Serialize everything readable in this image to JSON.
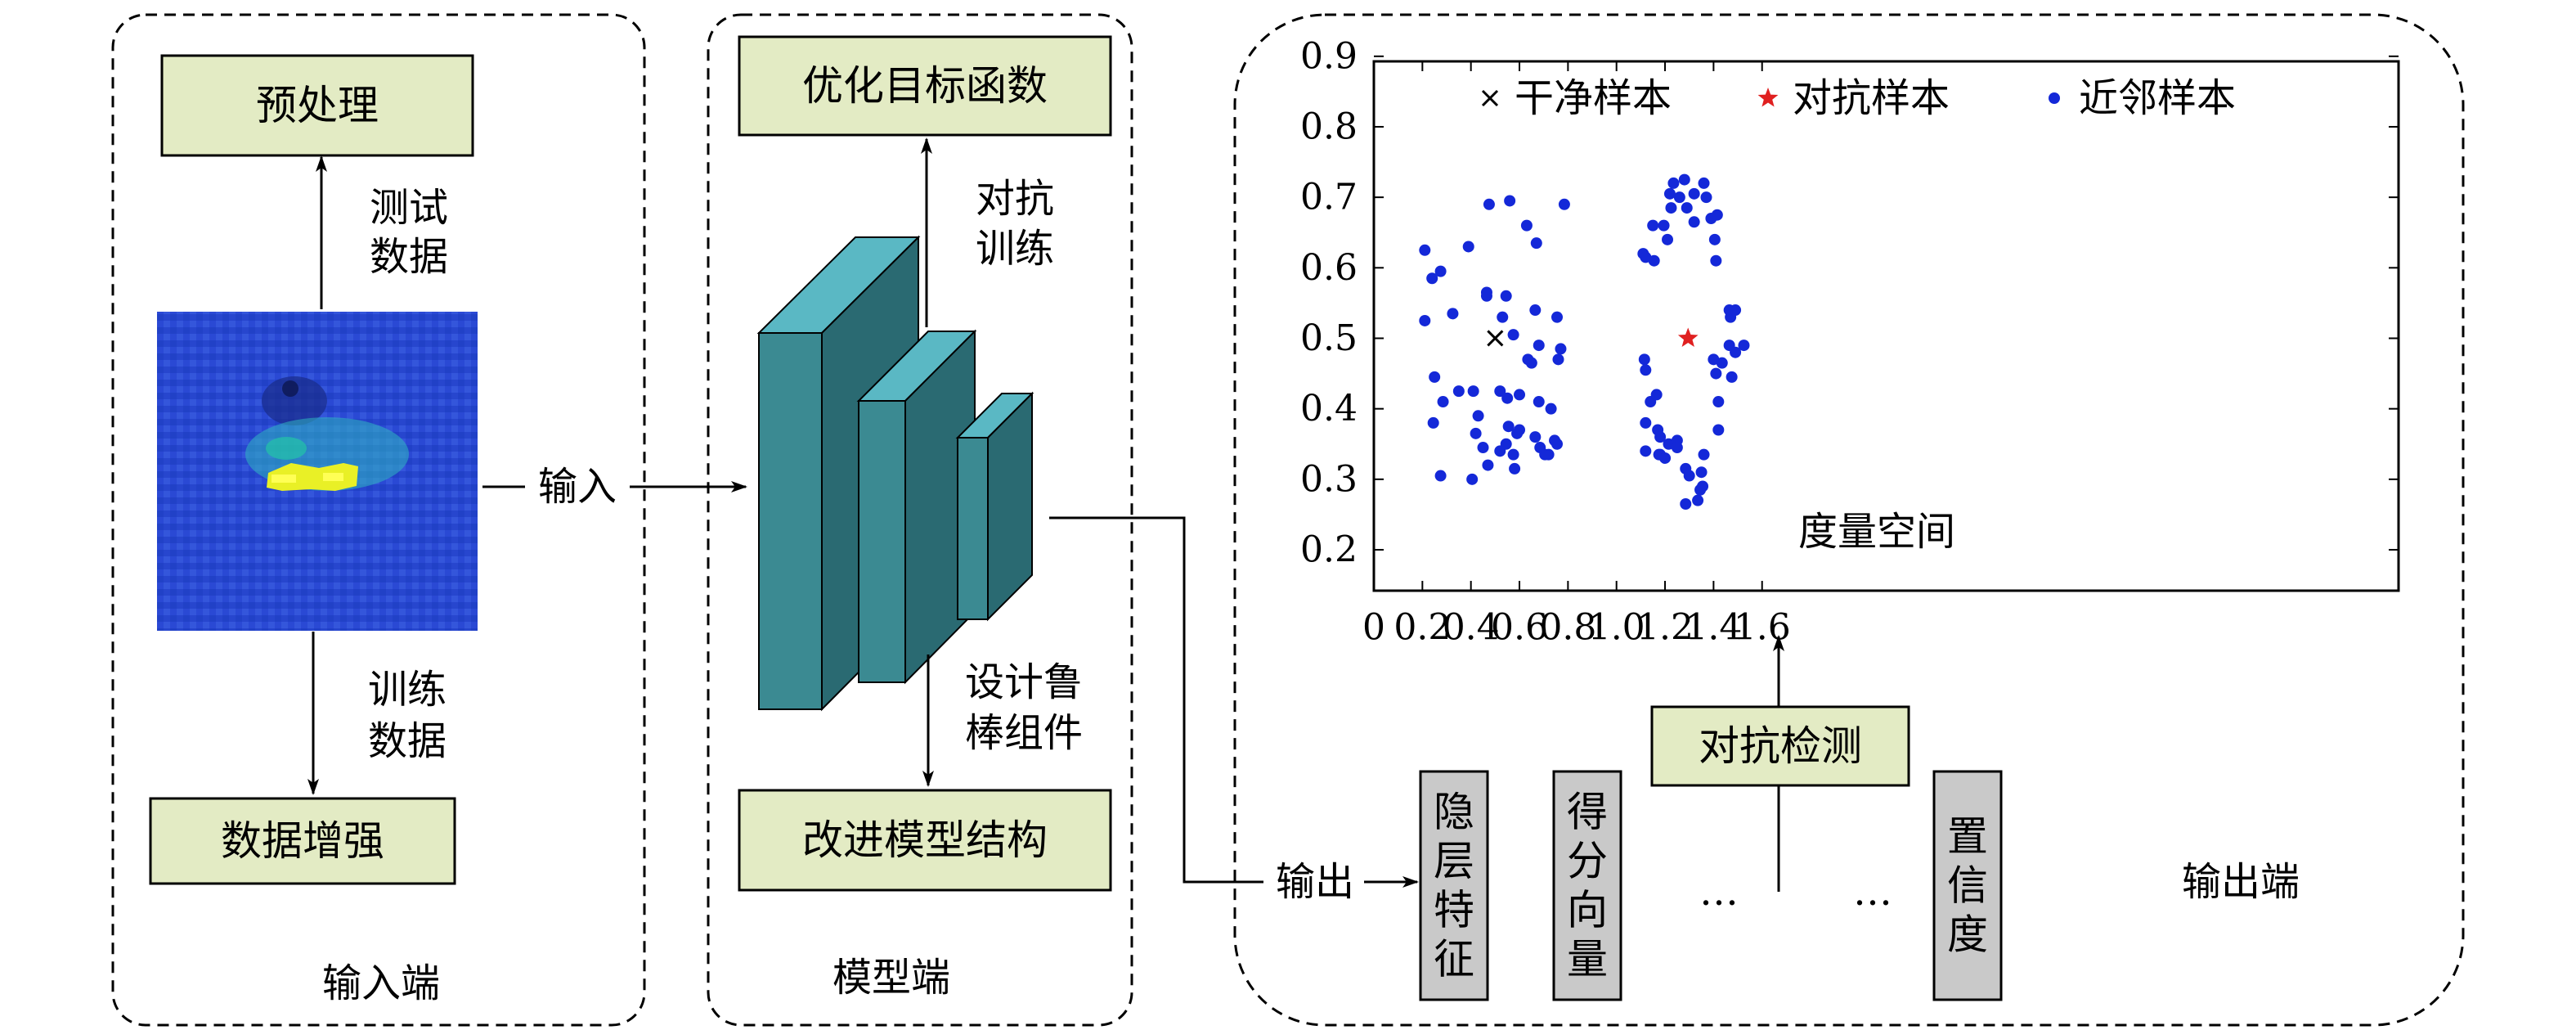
{
  "input_panel": {
    "preprocess": "预处理",
    "test_data": [
      "测试",
      "数据"
    ],
    "train_data": [
      "训练",
      "数据"
    ],
    "augment": "数据增强",
    "footer": "输入端",
    "input_arrow": "输入"
  },
  "model_panel": {
    "optimize": "优化目标函数",
    "adv_train": [
      "对抗",
      "训练"
    ],
    "robust": [
      "设计鲁",
      "棒组件"
    ],
    "improve": "改进模型结构",
    "footer": "模型端"
  },
  "output_panel": {
    "output_arrow": "输出",
    "detect": "对抗检测",
    "features": [
      {
        "text": "隐层特征"
      },
      {
        "text": "得分向量"
      },
      {
        "text": "置信度"
      }
    ],
    "ellipsis": [
      "…",
      "…"
    ],
    "footer": "输出端"
  },
  "colors": {
    "box_fill": "#e3ebc4",
    "feature_fill": "#c9c9c9",
    "cube_front": "#3b8a92",
    "cube_side": "#2a6a72",
    "cube_top": "#5ab8c4",
    "neighbor": "#1428d8",
    "adv": "#e02020",
    "clean": "#000000"
  },
  "chart_data": {
    "type": "scatter",
    "annotation": "度量空间",
    "xlim": [
      0,
      1.7
    ],
    "ylim": [
      0.2,
      0.9
    ],
    "xticks": [
      "0",
      "0.2",
      "0.4",
      "0.6",
      "0.8",
      "1.0",
      "1.2",
      "1.4",
      "1.6"
    ],
    "yticks": [
      "0.2",
      "0.3",
      "0.4",
      "0.5",
      "0.6",
      "0.7",
      "0.8",
      "0.9"
    ],
    "legend_position": "top",
    "series": [
      {
        "name": "干净样本",
        "marker": "x",
        "points": [
          [
            0.5,
            0.5
          ]
        ]
      },
      {
        "name": "对抗样本",
        "marker": "star",
        "points": [
          [
            1.295,
            0.5
          ]
        ]
      },
      {
        "name": "近邻样本",
        "marker": "dot",
        "points": [
          [
            0.21,
            0.625
          ],
          [
            0.24,
            0.585
          ],
          [
            0.275,
            0.595
          ],
          [
            0.21,
            0.525
          ],
          [
            0.25,
            0.445
          ],
          [
            0.285,
            0.41
          ],
          [
            0.245,
            0.38
          ],
          [
            0.275,
            0.305
          ],
          [
            0.325,
            0.535
          ],
          [
            0.39,
            0.63
          ],
          [
            0.35,
            0.425
          ],
          [
            0.41,
            0.425
          ],
          [
            0.405,
            0.3
          ],
          [
            0.43,
            0.39
          ],
          [
            0.45,
            0.345
          ],
          [
            0.47,
            0.32
          ],
          [
            0.42,
            0.365
          ],
          [
            0.465,
            0.56
          ],
          [
            0.465,
            0.565
          ],
          [
            0.475,
            0.69
          ],
          [
            0.52,
            0.425
          ],
          [
            0.52,
            0.34
          ],
          [
            0.53,
            0.53
          ],
          [
            0.545,
            0.56
          ],
          [
            0.55,
            0.415
          ],
          [
            0.555,
            0.375
          ],
          [
            0.56,
            0.695
          ],
          [
            0.545,
            0.35
          ],
          [
            0.575,
            0.335
          ],
          [
            0.58,
            0.315
          ],
          [
            0.59,
            0.365
          ],
          [
            0.6,
            0.37
          ],
          [
            0.575,
            0.505
          ],
          [
            0.6,
            0.42
          ],
          [
            0.63,
            0.66
          ],
          [
            0.635,
            0.47
          ],
          [
            0.65,
            0.465
          ],
          [
            0.67,
            0.635
          ],
          [
            0.665,
            0.54
          ],
          [
            0.68,
            0.49
          ],
          [
            0.68,
            0.41
          ],
          [
            0.665,
            0.36
          ],
          [
            0.685,
            0.345
          ],
          [
            0.705,
            0.335
          ],
          [
            0.72,
            0.335
          ],
          [
            0.73,
            0.4
          ],
          [
            0.745,
            0.355
          ],
          [
            0.755,
            0.35
          ],
          [
            0.755,
            0.53
          ],
          [
            0.77,
            0.485
          ],
          [
            0.76,
            0.47
          ],
          [
            0.785,
            0.69
          ],
          [
            1.11,
            0.62
          ],
          [
            1.12,
            0.615
          ],
          [
            1.115,
            0.47
          ],
          [
            1.12,
            0.455
          ],
          [
            1.14,
            0.41
          ],
          [
            1.15,
            0.66
          ],
          [
            1.155,
            0.61
          ],
          [
            1.165,
            0.42
          ],
          [
            1.17,
            0.37
          ],
          [
            1.175,
            0.335
          ],
          [
            1.18,
            0.335
          ],
          [
            1.18,
            0.36
          ],
          [
            1.12,
            0.38
          ],
          [
            1.12,
            0.34
          ],
          [
            1.2,
            0.33
          ],
          [
            1.195,
            0.66
          ],
          [
            1.21,
            0.64
          ],
          [
            1.215,
            0.35
          ],
          [
            1.22,
            0.705
          ],
          [
            1.225,
            0.685
          ],
          [
            1.235,
            0.72
          ],
          [
            1.25,
            0.355
          ],
          [
            1.25,
            0.345
          ],
          [
            1.26,
            0.7
          ],
          [
            1.28,
            0.725
          ],
          [
            1.285,
            0.315
          ],
          [
            1.285,
            0.265
          ],
          [
            1.29,
            0.685
          ],
          [
            1.3,
            0.305
          ],
          [
            1.32,
            0.705
          ],
          [
            1.32,
            0.665
          ],
          [
            1.335,
            0.27
          ],
          [
            1.345,
            0.285
          ],
          [
            1.35,
            0.31
          ],
          [
            1.355,
            0.29
          ],
          [
            1.36,
            0.72
          ],
          [
            1.37,
            0.7
          ],
          [
            1.36,
            0.335
          ],
          [
            1.39,
            0.67
          ],
          [
            1.405,
            0.64
          ],
          [
            1.415,
            0.675
          ],
          [
            1.41,
            0.61
          ],
          [
            1.4,
            0.47
          ],
          [
            1.41,
            0.45
          ],
          [
            1.42,
            0.37
          ],
          [
            1.42,
            0.41
          ],
          [
            1.435,
            0.465
          ],
          [
            1.465,
            0.54
          ],
          [
            1.47,
            0.53
          ],
          [
            1.465,
            0.49
          ],
          [
            1.49,
            0.48
          ],
          [
            1.475,
            0.445
          ],
          [
            1.49,
            0.54
          ],
          [
            1.525,
            0.49
          ]
        ]
      }
    ]
  }
}
